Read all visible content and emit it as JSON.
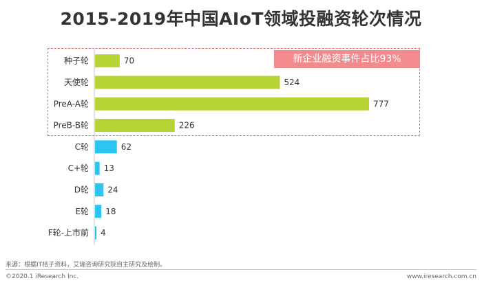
{
  "title": "2015-2019年中国AIoT领域投融资轮次情况",
  "callout": "新企业融资事件占比93%",
  "source": "来源：根据IT桔子资料，艾瑞咨询研究院自主研究及绘制。",
  "copyright": "©2020.1 iResearch Inc.",
  "website": "www.iresearch.com.cn",
  "colors": {
    "early_stage": "#b6d436",
    "later_stage": "#2cc4f0",
    "callout_bg": "#f28a8e",
    "box_border": "#e46f73"
  },
  "chart_data": {
    "type": "bar",
    "orientation": "horizontal",
    "title": "2015-2019年中国AIoT领域投融资轮次情况",
    "categories": [
      "种子轮",
      "天使轮",
      "PreA-A轮",
      "PreB-B轮",
      "C轮",
      "C+轮",
      "D轮",
      "E轮",
      "F轮-上市前"
    ],
    "values": [
      70,
      524,
      777,
      226,
      62,
      13,
      24,
      18,
      4
    ],
    "bar_colors": [
      "#b6d436",
      "#b6d436",
      "#b6d436",
      "#b6d436",
      "#2cc4f0",
      "#2cc4f0",
      "#2cc4f0",
      "#2cc4f0",
      "#2cc4f0"
    ],
    "highlighted_categories": [
      "种子轮",
      "天使轮",
      "PreA-A轮",
      "PreB-B轮"
    ],
    "xlim": [
      0,
      777
    ],
    "data_labels": true,
    "grid": false
  }
}
